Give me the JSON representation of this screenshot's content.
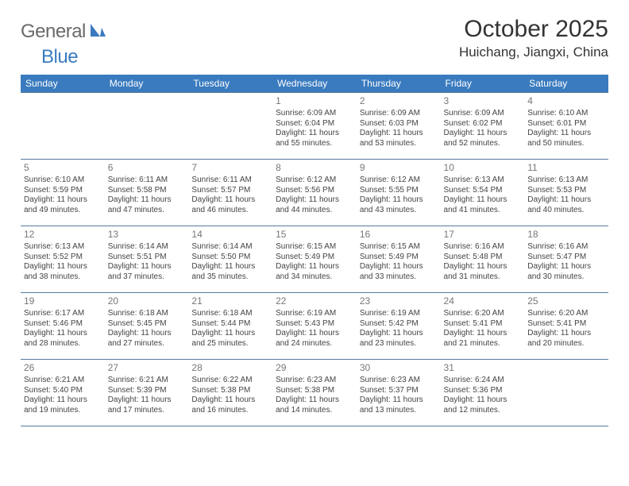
{
  "logo": {
    "text1": "General",
    "text2": "Blue"
  },
  "title": "October 2025",
  "location": "Huichang, Jiangxi, China",
  "colors": {
    "header_bg": "#3a7bbf",
    "header_text": "#ffffff",
    "border": "#5a7a9a",
    "logo_gray": "#6a6a6a",
    "logo_blue": "#3a7bbf",
    "daynum": "#777777",
    "body_text": "#444444"
  },
  "dayHeaders": [
    "Sunday",
    "Monday",
    "Tuesday",
    "Wednesday",
    "Thursday",
    "Friday",
    "Saturday"
  ],
  "weeks": [
    [
      null,
      null,
      null,
      {
        "n": "1",
        "sr": "Sunrise: 6:09 AM",
        "ss": "Sunset: 6:04 PM",
        "dl": "Daylight: 11 hours and 55 minutes."
      },
      {
        "n": "2",
        "sr": "Sunrise: 6:09 AM",
        "ss": "Sunset: 6:03 PM",
        "dl": "Daylight: 11 hours and 53 minutes."
      },
      {
        "n": "3",
        "sr": "Sunrise: 6:09 AM",
        "ss": "Sunset: 6:02 PM",
        "dl": "Daylight: 11 hours and 52 minutes."
      },
      {
        "n": "4",
        "sr": "Sunrise: 6:10 AM",
        "ss": "Sunset: 6:01 PM",
        "dl": "Daylight: 11 hours and 50 minutes."
      }
    ],
    [
      {
        "n": "5",
        "sr": "Sunrise: 6:10 AM",
        "ss": "Sunset: 5:59 PM",
        "dl": "Daylight: 11 hours and 49 minutes."
      },
      {
        "n": "6",
        "sr": "Sunrise: 6:11 AM",
        "ss": "Sunset: 5:58 PM",
        "dl": "Daylight: 11 hours and 47 minutes."
      },
      {
        "n": "7",
        "sr": "Sunrise: 6:11 AM",
        "ss": "Sunset: 5:57 PM",
        "dl": "Daylight: 11 hours and 46 minutes."
      },
      {
        "n": "8",
        "sr": "Sunrise: 6:12 AM",
        "ss": "Sunset: 5:56 PM",
        "dl": "Daylight: 11 hours and 44 minutes."
      },
      {
        "n": "9",
        "sr": "Sunrise: 6:12 AM",
        "ss": "Sunset: 5:55 PM",
        "dl": "Daylight: 11 hours and 43 minutes."
      },
      {
        "n": "10",
        "sr": "Sunrise: 6:13 AM",
        "ss": "Sunset: 5:54 PM",
        "dl": "Daylight: 11 hours and 41 minutes."
      },
      {
        "n": "11",
        "sr": "Sunrise: 6:13 AM",
        "ss": "Sunset: 5:53 PM",
        "dl": "Daylight: 11 hours and 40 minutes."
      }
    ],
    [
      {
        "n": "12",
        "sr": "Sunrise: 6:13 AM",
        "ss": "Sunset: 5:52 PM",
        "dl": "Daylight: 11 hours and 38 minutes."
      },
      {
        "n": "13",
        "sr": "Sunrise: 6:14 AM",
        "ss": "Sunset: 5:51 PM",
        "dl": "Daylight: 11 hours and 37 minutes."
      },
      {
        "n": "14",
        "sr": "Sunrise: 6:14 AM",
        "ss": "Sunset: 5:50 PM",
        "dl": "Daylight: 11 hours and 35 minutes."
      },
      {
        "n": "15",
        "sr": "Sunrise: 6:15 AM",
        "ss": "Sunset: 5:49 PM",
        "dl": "Daylight: 11 hours and 34 minutes."
      },
      {
        "n": "16",
        "sr": "Sunrise: 6:15 AM",
        "ss": "Sunset: 5:49 PM",
        "dl": "Daylight: 11 hours and 33 minutes."
      },
      {
        "n": "17",
        "sr": "Sunrise: 6:16 AM",
        "ss": "Sunset: 5:48 PM",
        "dl": "Daylight: 11 hours and 31 minutes."
      },
      {
        "n": "18",
        "sr": "Sunrise: 6:16 AM",
        "ss": "Sunset: 5:47 PM",
        "dl": "Daylight: 11 hours and 30 minutes."
      }
    ],
    [
      {
        "n": "19",
        "sr": "Sunrise: 6:17 AM",
        "ss": "Sunset: 5:46 PM",
        "dl": "Daylight: 11 hours and 28 minutes."
      },
      {
        "n": "20",
        "sr": "Sunrise: 6:18 AM",
        "ss": "Sunset: 5:45 PM",
        "dl": "Daylight: 11 hours and 27 minutes."
      },
      {
        "n": "21",
        "sr": "Sunrise: 6:18 AM",
        "ss": "Sunset: 5:44 PM",
        "dl": "Daylight: 11 hours and 25 minutes."
      },
      {
        "n": "22",
        "sr": "Sunrise: 6:19 AM",
        "ss": "Sunset: 5:43 PM",
        "dl": "Daylight: 11 hours and 24 minutes."
      },
      {
        "n": "23",
        "sr": "Sunrise: 6:19 AM",
        "ss": "Sunset: 5:42 PM",
        "dl": "Daylight: 11 hours and 23 minutes."
      },
      {
        "n": "24",
        "sr": "Sunrise: 6:20 AM",
        "ss": "Sunset: 5:41 PM",
        "dl": "Daylight: 11 hours and 21 minutes."
      },
      {
        "n": "25",
        "sr": "Sunrise: 6:20 AM",
        "ss": "Sunset: 5:41 PM",
        "dl": "Daylight: 11 hours and 20 minutes."
      }
    ],
    [
      {
        "n": "26",
        "sr": "Sunrise: 6:21 AM",
        "ss": "Sunset: 5:40 PM",
        "dl": "Daylight: 11 hours and 19 minutes."
      },
      {
        "n": "27",
        "sr": "Sunrise: 6:21 AM",
        "ss": "Sunset: 5:39 PM",
        "dl": "Daylight: 11 hours and 17 minutes."
      },
      {
        "n": "28",
        "sr": "Sunrise: 6:22 AM",
        "ss": "Sunset: 5:38 PM",
        "dl": "Daylight: 11 hours and 16 minutes."
      },
      {
        "n": "29",
        "sr": "Sunrise: 6:23 AM",
        "ss": "Sunset: 5:38 PM",
        "dl": "Daylight: 11 hours and 14 minutes."
      },
      {
        "n": "30",
        "sr": "Sunrise: 6:23 AM",
        "ss": "Sunset: 5:37 PM",
        "dl": "Daylight: 11 hours and 13 minutes."
      },
      {
        "n": "31",
        "sr": "Sunrise: 6:24 AM",
        "ss": "Sunset: 5:36 PM",
        "dl": "Daylight: 11 hours and 12 minutes."
      },
      null
    ]
  ]
}
